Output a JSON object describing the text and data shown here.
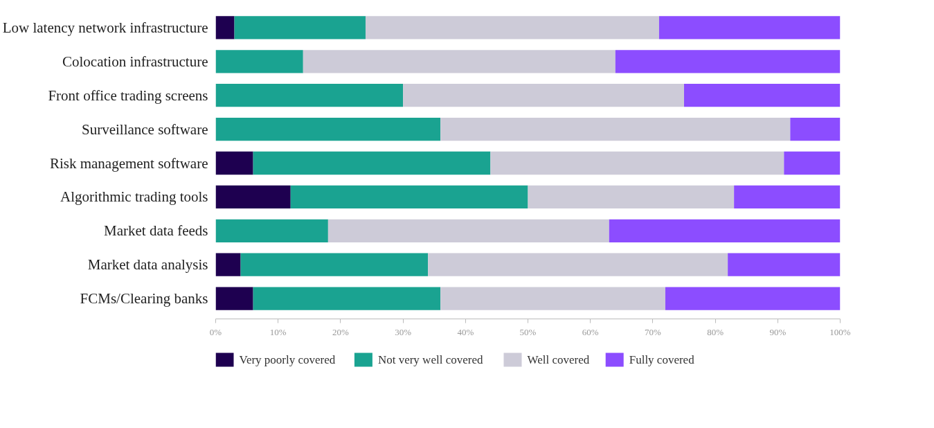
{
  "chart_data": {
    "type": "bar",
    "orientation": "horizontal",
    "stacked": true,
    "categories": [
      "Low latency network infrastructure",
      "Colocation infrastructure",
      "Front office trading screens",
      "Surveillance software",
      "Risk management software",
      "Algorithmic trading tools",
      "Market data feeds",
      "Market data analysis",
      "FCMs/Clearing banks"
    ],
    "series": [
      {
        "name": "Very poorly covered",
        "color": "#1e0050",
        "values": [
          3,
          0,
          0,
          0,
          6,
          12,
          0,
          4,
          6
        ]
      },
      {
        "name": "Not very well covered",
        "color": "#1aa391",
        "values": [
          21,
          14,
          30,
          36,
          38,
          38,
          18,
          30,
          30
        ]
      },
      {
        "name": "Well covered",
        "color": "#cdcbd8",
        "values": [
          47,
          50,
          45,
          56,
          47,
          33,
          45,
          48,
          36
        ]
      },
      {
        "name": "Fully covered",
        "color": "#8c4dff",
        "values": [
          29,
          36,
          25,
          8,
          9,
          17,
          37,
          18,
          28
        ]
      }
    ],
    "xlim": [
      0,
      100
    ],
    "xticks": [
      {
        "value": 0,
        "label": "0%"
      },
      {
        "value": 10,
        "label": "10%"
      },
      {
        "value": 20,
        "label": "20%"
      },
      {
        "value": 30,
        "label": "30%"
      },
      {
        "value": 40,
        "label": "40%"
      },
      {
        "value": 50,
        "label": "50%"
      },
      {
        "value": 60,
        "label": "60%"
      },
      {
        "value": 70,
        "label": "70%"
      },
      {
        "value": 80,
        "label": "80%"
      },
      {
        "value": 90,
        "label": "90%"
      },
      {
        "value": 100,
        "label": "100%"
      }
    ],
    "grid": false,
    "legend": "bottom"
  }
}
